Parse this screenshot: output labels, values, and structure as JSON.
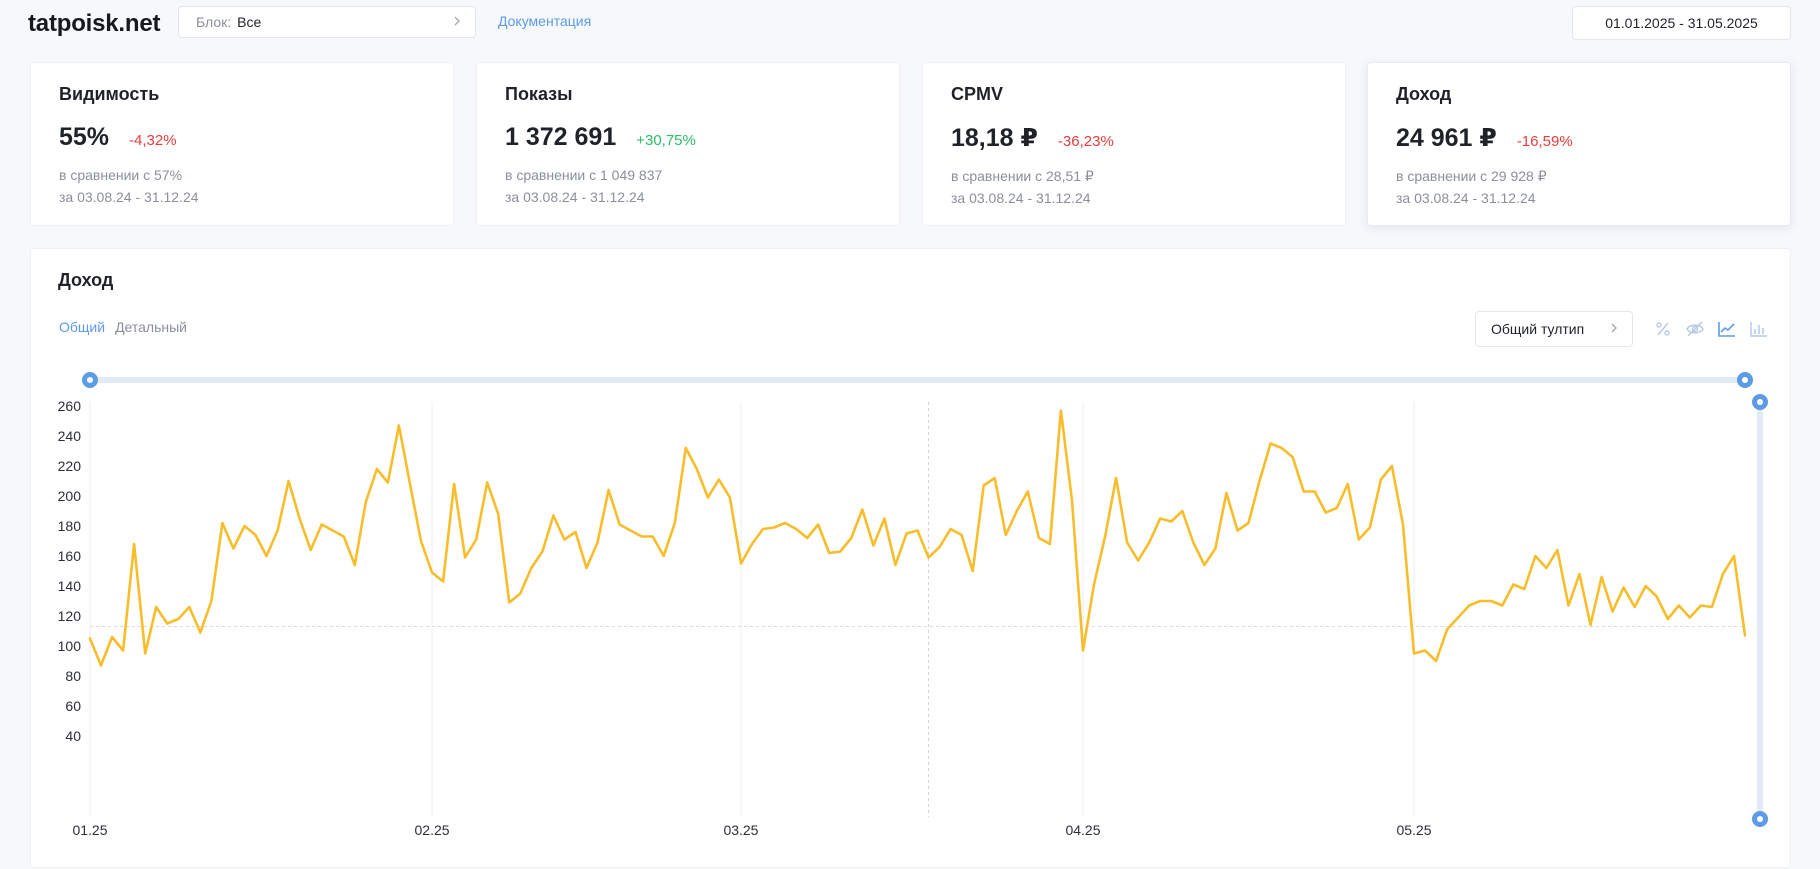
{
  "header": {
    "logo": "tatpoisk.net",
    "block_label": "Блок:",
    "block_value": "Все",
    "docs_link": "Документация",
    "date_range": "01.01.2025 - 31.05.2025"
  },
  "cards": [
    {
      "title": "Видимость",
      "value": "55%",
      "delta": "-4,32%",
      "compare": "в сравнении с 57%",
      "period": "за 03.08.24 - 31.12.24"
    },
    {
      "title": "Показы",
      "value": "1 372 691",
      "delta": "+30,75%",
      "compare": "в сравнении с 1 049 837",
      "period": "за 03.08.24 - 31.12.24"
    },
    {
      "title": "CPMV",
      "value": "18,18 ₽",
      "delta": "-36,23%",
      "compare": "в сравнении с 28,51 ₽",
      "period": "за 03.08.24 - 31.12.24"
    },
    {
      "title": "Доход",
      "value": "24 961 ₽",
      "delta": "-16,59%",
      "compare": "в сравнении с 29 928 ₽",
      "period": "за 03.08.24 - 31.12.24"
    }
  ],
  "panel": {
    "title": "Доход",
    "tabs": [
      "Общий",
      "Детальный"
    ],
    "tooltip_select": "Общий тултип",
    "icons": [
      "percent-icon",
      "eye-off-icon",
      "line-chart-icon",
      "bar-chart-icon"
    ]
  },
  "colors": {
    "accent": "#5c9be6",
    "line": "#f8bd2b",
    "negative": "#e63c3c",
    "positive": "#2dbc6a"
  },
  "chart_data": {
    "type": "line",
    "title": "Доход",
    "x_tick_labels": [
      "01.25",
      "02.25",
      "03.25",
      "04.25",
      "05.25"
    ],
    "y_ticks": [
      40,
      60,
      80,
      100,
      120,
      140,
      160,
      180,
      200,
      220,
      240,
      260
    ],
    "ylim": [
      0,
      260
    ],
    "grid": "vertical lines at month starts",
    "reference_line": 113,
    "series": [
      {
        "values": [
          105,
          87,
          106,
          97,
          168,
          95,
          126,
          115,
          118,
          126,
          109,
          130,
          182,
          165,
          180,
          174,
          160,
          177,
          210,
          185,
          164,
          181,
          177,
          173,
          154,
          196,
          218,
          209,
          247,
          208,
          170,
          149,
          143,
          208,
          159,
          171,
          209,
          188,
          129,
          135,
          152,
          163,
          187,
          171,
          176,
          152,
          169,
          204,
          181,
          177,
          173,
          173,
          160,
          182,
          232,
          218,
          199,
          211,
          199,
          155,
          168,
          178,
          179,
          182,
          178,
          172,
          181,
          162,
          163,
          172,
          191,
          167,
          185,
          154,
          175,
          177,
          159,
          166,
          178,
          174,
          150,
          207,
          212,
          174,
          190,
          203,
          172,
          168,
          257,
          197,
          97,
          141,
          173,
          212,
          169,
          157,
          169,
          185,
          183,
          190,
          169,
          154,
          165,
          202,
          177,
          182,
          210,
          235,
          232,
          226,
          203,
          203,
          189,
          192,
          208,
          171,
          179,
          211,
          220,
          181,
          95,
          97,
          90,
          111,
          119,
          127,
          130,
          130,
          127,
          141,
          138,
          160,
          152,
          164,
          127,
          148,
          114,
          146,
          123,
          139,
          126,
          140,
          133,
          118,
          127,
          119,
          127,
          126,
          148,
          160,
          107
        ]
      }
    ]
  }
}
